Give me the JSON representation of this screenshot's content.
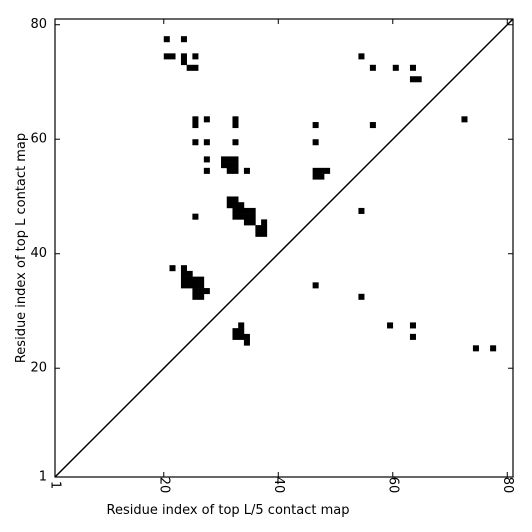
{
  "chart_data": {
    "type": "heatmap",
    "xlabel": "Residue index of top L/5 contact map",
    "ylabel": "Residue index of top L contact map",
    "xlim": [
      1,
      81
    ],
    "ylim": [
      1,
      81
    ],
    "x_ticks": [
      {
        "value": 1,
        "label": "1"
      },
      {
        "value": 20,
        "label": "20"
      },
      {
        "value": 40,
        "label": "40"
      },
      {
        "value": 60,
        "label": "60"
      },
      {
        "value": 80,
        "label": "80"
      }
    ],
    "y_ticks": [
      {
        "value": 1,
        "label": "1"
      },
      {
        "value": 20,
        "label": "20"
      },
      {
        "value": 40,
        "label": "40"
      },
      {
        "value": 60,
        "label": "60"
      },
      {
        "value": 80,
        "label": "80"
      }
    ],
    "diagonal": true,
    "cell_color": "#000000",
    "contacts_upper": [
      [
        20,
        77
      ],
      [
        23,
        77
      ],
      [
        20,
        74
      ],
      [
        21,
        74
      ],
      [
        23,
        74
      ],
      [
        23,
        73
      ],
      [
        25,
        74
      ],
      [
        24,
        72
      ],
      [
        25,
        72
      ],
      [
        25,
        63
      ],
      [
        25,
        62
      ],
      [
        27,
        63
      ],
      [
        32,
        63
      ],
      [
        32,
        62
      ],
      [
        25,
        59
      ],
      [
        27,
        59
      ],
      [
        32,
        59
      ],
      [
        27,
        56
      ],
      [
        30,
        56
      ],
      [
        31,
        56
      ],
      [
        32,
        56
      ],
      [
        30,
        55
      ],
      [
        31,
        55
      ],
      [
        32,
        55
      ],
      [
        31,
        54
      ],
      [
        32,
        54
      ],
      [
        27,
        54
      ],
      [
        34,
        54
      ],
      [
        31,
        49
      ],
      [
        32,
        49
      ],
      [
        31,
        48
      ],
      [
        32,
        48
      ],
      [
        33,
        48
      ],
      [
        32,
        47
      ],
      [
        33,
        47
      ],
      [
        34,
        47
      ],
      [
        35,
        47
      ],
      [
        32,
        46
      ],
      [
        33,
        46
      ],
      [
        34,
        46
      ],
      [
        35,
        46
      ],
      [
        34,
        45
      ],
      [
        35,
        45
      ],
      [
        37,
        45
      ],
      [
        36,
        44
      ],
      [
        37,
        44
      ],
      [
        36,
        43
      ],
      [
        37,
        43
      ],
      [
        25,
        46
      ],
      [
        46,
        62
      ],
      [
        46,
        59
      ],
      [
        46,
        54
      ],
      [
        47,
        54
      ],
      [
        48,
        54
      ],
      [
        46,
        53
      ],
      [
        47,
        53
      ],
      [
        54,
        47
      ],
      [
        54,
        74
      ],
      [
        56,
        72
      ],
      [
        60,
        72
      ],
      [
        63,
        72
      ],
      [
        63,
        70
      ],
      [
        64,
        70
      ],
      [
        56,
        62
      ],
      [
        72,
        63
      ]
    ],
    "contacts_lower": [
      [
        21,
        37
      ],
      [
        23,
        37
      ],
      [
        23,
        36
      ],
      [
        24,
        36
      ],
      [
        23,
        35
      ],
      [
        24,
        35
      ],
      [
        25,
        35
      ],
      [
        26,
        35
      ],
      [
        23,
        34
      ],
      [
        24,
        34
      ],
      [
        25,
        34
      ],
      [
        26,
        34
      ],
      [
        25,
        33
      ],
      [
        26,
        33
      ],
      [
        27,
        33
      ],
      [
        25,
        32
      ],
      [
        26,
        32
      ],
      [
        33,
        27
      ],
      [
        32,
        26
      ],
      [
        33,
        26
      ],
      [
        32,
        25
      ],
      [
        33,
        25
      ],
      [
        34,
        25
      ],
      [
        34,
        24
      ],
      [
        46,
        34
      ],
      [
        54,
        32
      ],
      [
        59,
        27
      ],
      [
        63,
        27
      ],
      [
        63,
        25
      ],
      [
        74,
        23
      ],
      [
        77,
        23
      ]
    ]
  }
}
